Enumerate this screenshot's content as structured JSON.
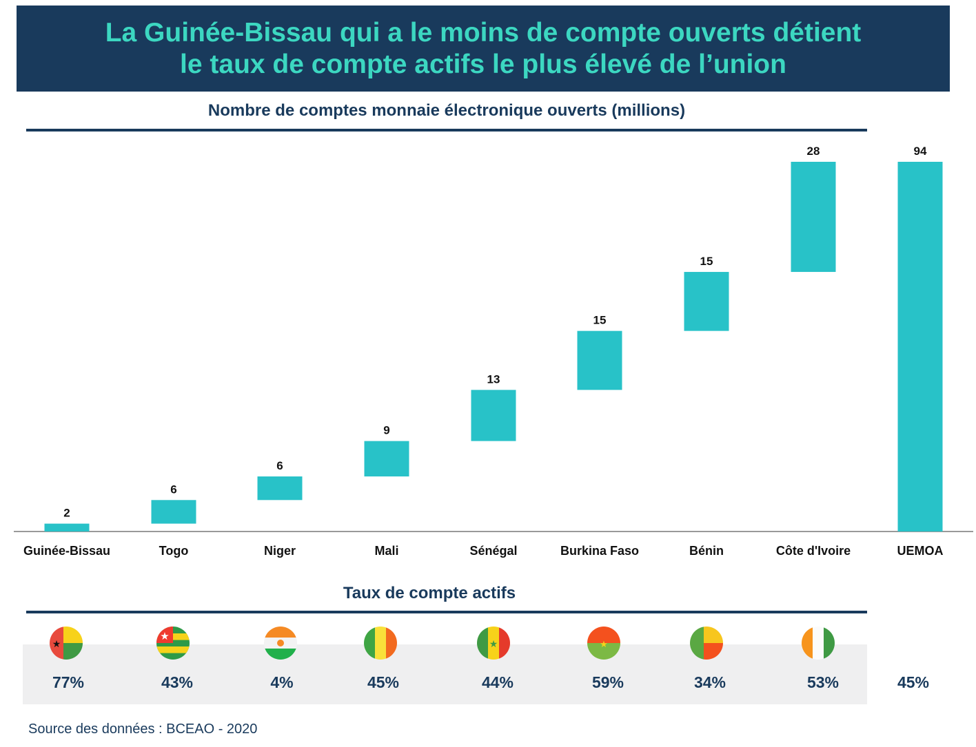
{
  "title": {
    "line1": "La Guinée-Bissau qui a le moins de compte ouverts détient",
    "line2": "le taux de compte actifs le plus élevé de l’union"
  },
  "rates_title": "Taux de compte actifs",
  "source": "Source des données : BCEAO - 2020",
  "colors": {
    "banner": "#193a5c",
    "title_text": "#3cd7c1",
    "bar": "#28c2c8",
    "band": "#efeff0"
  },
  "chart_data": {
    "type": "bar",
    "subtype": "waterfall",
    "title": "Nombre de comptes monnaie électronique ouverts (millions)",
    "categories": [
      "Guinée-Bissau",
      "Togo",
      "Niger",
      "Mali",
      "Sénégal",
      "Burkina Faso",
      "Bénin",
      "Côte d'Ivoire",
      "UEMOA"
    ],
    "values": [
      2,
      6,
      6,
      9,
      13,
      15,
      15,
      28,
      94
    ],
    "labels": [
      "2",
      "6",
      "6",
      "9",
      "13",
      "15",
      "15",
      "28",
      "94"
    ],
    "total_index": 8,
    "ylim": [
      0,
      94
    ],
    "xlabel": "",
    "ylabel": ""
  },
  "active_rates": [
    {
      "country": "Guinée-Bissau",
      "flag": "guinea-bissau-flag-icon",
      "rate": "77%"
    },
    {
      "country": "Togo",
      "flag": "togo-flag-icon",
      "rate": "43%"
    },
    {
      "country": "Niger",
      "flag": "niger-flag-icon",
      "rate": "4%"
    },
    {
      "country": "Mali",
      "flag": "mali-flag-icon",
      "rate": "45%"
    },
    {
      "country": "Sénégal",
      "flag": "senegal-flag-icon",
      "rate": "44%"
    },
    {
      "country": "Burkina Faso",
      "flag": "burkina-faso-flag-icon",
      "rate": "59%"
    },
    {
      "country": "Bénin",
      "flag": "benin-flag-icon",
      "rate": "34%"
    },
    {
      "country": "Côte d'Ivoire",
      "flag": "cote-divoire-flag-icon",
      "rate": "53%"
    },
    {
      "country": "UEMOA",
      "flag": "",
      "rate": "45%"
    }
  ]
}
